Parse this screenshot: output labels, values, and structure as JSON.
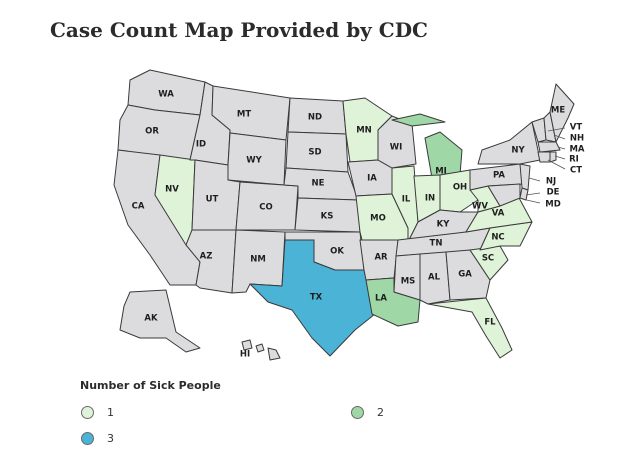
{
  "title": "Case Count Map Provided by CDC",
  "legend": {
    "title": "Number of Sick People",
    "items": [
      {
        "label": "1",
        "color": "#dff3d8"
      },
      {
        "label": "2",
        "color": "#9fd8a6"
      },
      {
        "label": "3",
        "color": "#4bb3d6"
      }
    ]
  },
  "colors": {
    "no_cases": "#dcdcde",
    "border": "#3a3a3a"
  },
  "states": {
    "WA": {
      "label": "WA",
      "value": 0
    },
    "OR": {
      "label": "OR",
      "value": 0
    },
    "CA": {
      "label": "CA",
      "value": 0
    },
    "NV": {
      "label": "NV",
      "value": 1
    },
    "ID": {
      "label": "ID",
      "value": 0
    },
    "MT": {
      "label": "MT",
      "value": 0
    },
    "WY": {
      "label": "WY",
      "value": 0
    },
    "UT": {
      "label": "UT",
      "value": 0
    },
    "AZ": {
      "label": "AZ",
      "value": 0
    },
    "CO": {
      "label": "CO",
      "value": 0
    },
    "NM": {
      "label": "NM",
      "value": 0
    },
    "ND": {
      "label": "ND",
      "value": 0
    },
    "SD": {
      "label": "SD",
      "value": 0
    },
    "NE": {
      "label": "NE",
      "value": 0
    },
    "KS": {
      "label": "KS",
      "value": 0
    },
    "OK": {
      "label": "OK",
      "value": 0
    },
    "TX": {
      "label": "TX",
      "value": 3
    },
    "MN": {
      "label": "MN",
      "value": 1
    },
    "IA": {
      "label": "IA",
      "value": 0
    },
    "MO": {
      "label": "MO",
      "value": 1
    },
    "AR": {
      "label": "AR",
      "value": 0
    },
    "LA": {
      "label": "LA",
      "value": 2
    },
    "WI": {
      "label": "WI",
      "value": 0
    },
    "IL": {
      "label": "IL",
      "value": 1
    },
    "MI": {
      "label": "MI",
      "value": 2
    },
    "IN": {
      "label": "IN",
      "value": 1
    },
    "OH": {
      "label": "OH",
      "value": 1
    },
    "KY": {
      "label": "KY",
      "value": 0
    },
    "TN": {
      "label": "TN",
      "value": 0
    },
    "MS": {
      "label": "MS",
      "value": 0
    },
    "AL": {
      "label": "AL",
      "value": 0
    },
    "GA": {
      "label": "GA",
      "value": 0
    },
    "FL": {
      "label": "FL",
      "value": 1
    },
    "SC": {
      "label": "SC",
      "value": 1
    },
    "NC": {
      "label": "NC",
      "value": 1
    },
    "VA": {
      "label": "VA",
      "value": 1
    },
    "WV": {
      "label": "WV",
      "value": 1
    },
    "PA": {
      "label": "PA",
      "value": 0
    },
    "NY": {
      "label": "NY",
      "value": 0
    },
    "VT": {
      "label": "VT",
      "value": 0
    },
    "NH": {
      "label": "NH",
      "value": 0
    },
    "ME": {
      "label": "ME",
      "value": 0
    },
    "MA": {
      "label": "MA",
      "value": 0
    },
    "RI": {
      "label": "RI",
      "value": 0
    },
    "CT": {
      "label": "CT",
      "value": 0
    },
    "NJ": {
      "label": "NJ",
      "value": 0
    },
    "DE": {
      "label": "DE",
      "value": 0
    },
    "MD": {
      "label": "MD",
      "value": 0
    },
    "AK": {
      "label": "AK",
      "value": 0
    },
    "HI": {
      "label": "HI",
      "value": 0
    }
  }
}
